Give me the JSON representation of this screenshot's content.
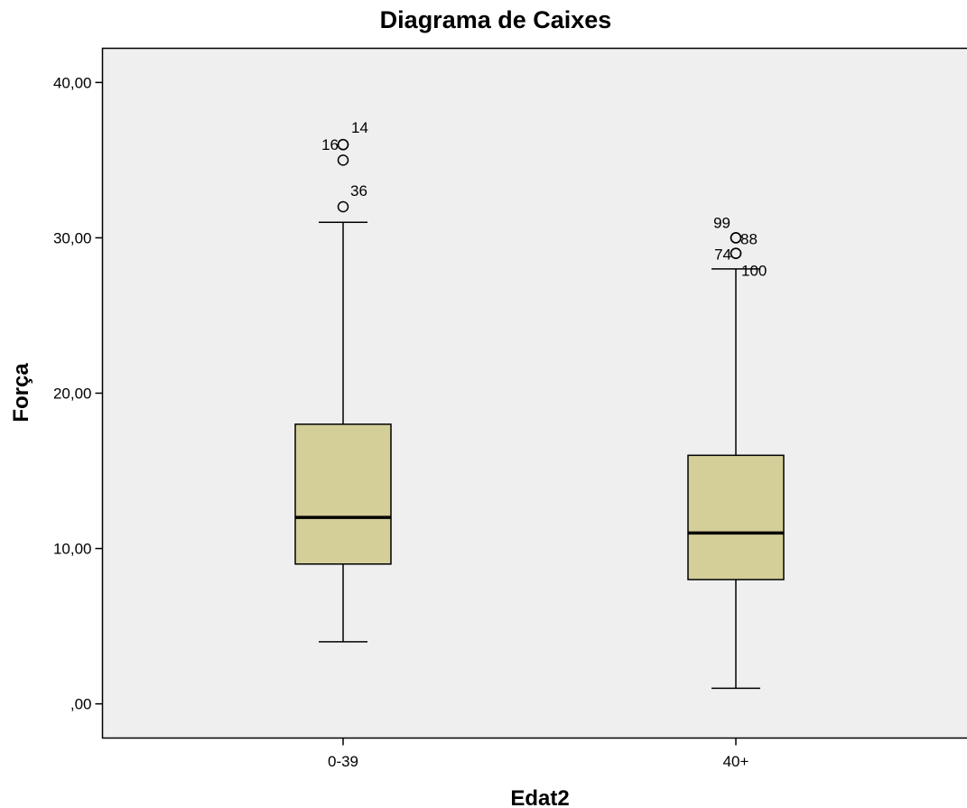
{
  "chart_data": {
    "type": "boxplot",
    "title": "Diagrama de Caixes",
    "xlabel": "Edat2",
    "ylabel": "Força",
    "ylim": [
      -2.2,
      42.2
    ],
    "y_ticks": [
      0,
      10,
      20,
      30,
      40
    ],
    "y_tick_labels": [
      ",00",
      "10,00",
      "20,00",
      "30,00",
      "40,00"
    ],
    "grid": false,
    "categories": [
      "0-39",
      "40+"
    ],
    "boxes": [
      {
        "category": "0-39",
        "whisker_low": 4,
        "q1": 9,
        "median": 12,
        "q3": 18,
        "whisker_high": 31,
        "outliers": [
          {
            "value": 36,
            "label": "14"
          },
          {
            "value": 36,
            "label": "16"
          },
          {
            "value": 35,
            "label": ""
          },
          {
            "value": 32,
            "label": "36"
          }
        ]
      },
      {
        "category": "40+",
        "whisker_low": 1,
        "q1": 8,
        "median": 11,
        "q3": 16,
        "whisker_high": 28,
        "outliers": [
          {
            "value": 30,
            "label": "99"
          },
          {
            "value": 30,
            "label": "88"
          },
          {
            "value": 29,
            "label": "74"
          },
          {
            "value": 29,
            "label": "100"
          }
        ]
      }
    ],
    "colors": {
      "plot_background": "#efefef",
      "box_fill": "#d4ce98",
      "line": "#000000"
    }
  }
}
